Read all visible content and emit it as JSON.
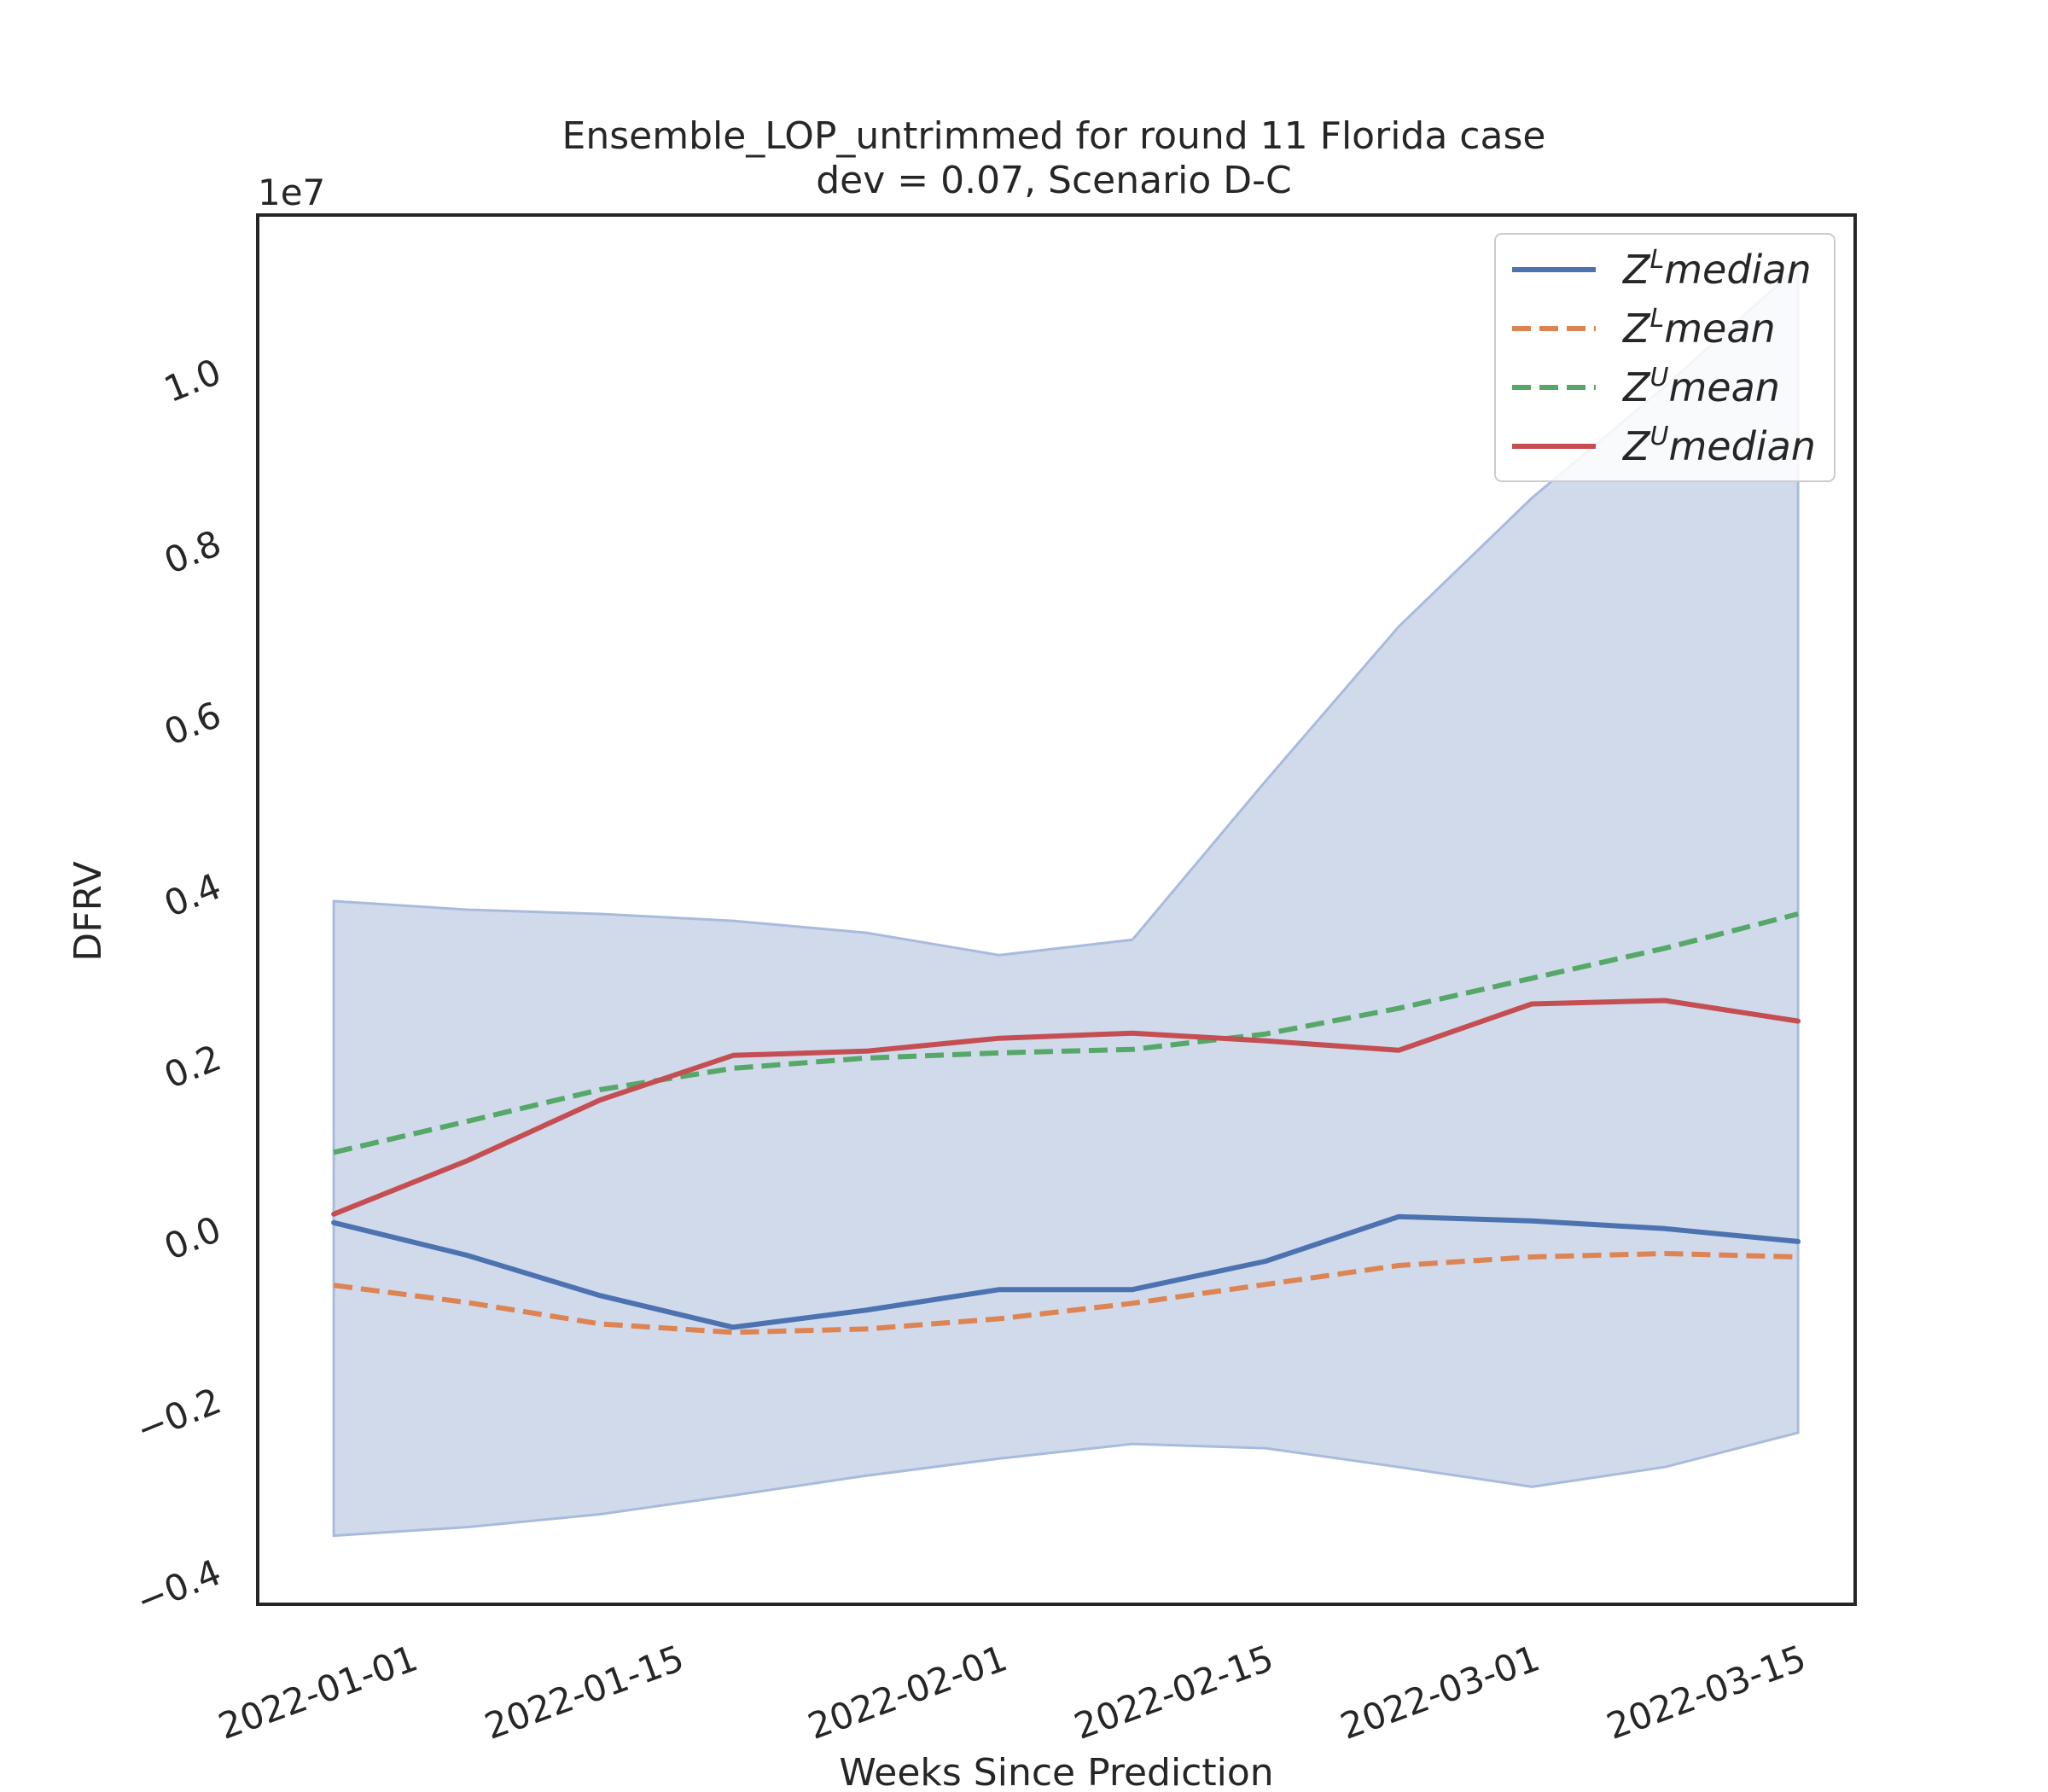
{
  "chart_data": {
    "type": "line",
    "title": "Ensemble_LOP_untrimmed for round 11 Florida case",
    "subtitle": "dev = 0.07, Scenario D-C",
    "xlabel": "Weeks Since Prediction",
    "ylabel": "DFRV",
    "y_scale_label": "1e7",
    "x_ticks": [
      "2022-01-01",
      "2022-01-15",
      "2022-02-01",
      "2022-02-15",
      "2022-03-01",
      "2022-03-15"
    ],
    "y_ticks": [
      "−0.4",
      "−0.2",
      "0.0",
      "0.2",
      "0.4",
      "0.6",
      "0.8",
      "1.0"
    ],
    "y_tick_values": [
      -0.4,
      -0.2,
      0.0,
      0.2,
      0.4,
      0.6,
      0.8,
      1.0
    ],
    "xlim": [
      "2021-12-24",
      "2022-03-18"
    ],
    "ylim": [
      -0.44,
      1.18
    ],
    "grid": false,
    "legend_position": "top-right",
    "x": [
      "2021-12-28",
      "2022-01-04",
      "2022-01-11",
      "2022-01-18",
      "2022-01-25",
      "2022-02-01",
      "2022-02-08",
      "2022-02-15",
      "2022-02-22",
      "2022-03-01",
      "2022-03-08",
      "2022-03-15"
    ],
    "band": {
      "color": "#c8d3e7",
      "upper": [
        0.38,
        0.37,
        0.365,
        0.357,
        0.343,
        0.317,
        0.335,
        0.52,
        0.7,
        0.85,
        0.98,
        1.12
      ],
      "lower": [
        -0.36,
        -0.35,
        -0.335,
        -0.313,
        -0.29,
        -0.27,
        -0.253,
        -0.258,
        -0.28,
        -0.303,
        -0.28,
        -0.24
      ]
    },
    "series": [
      {
        "name": "median",
        "prefix": "Z",
        "sup": "L",
        "color": "#4c72b0",
        "dash": "solid",
        "values": [
          0.005,
          -0.033,
          -0.08,
          -0.117,
          -0.097,
          -0.073,
          -0.073,
          -0.04,
          0.012,
          0.007,
          -0.002,
          -0.017
        ]
      },
      {
        "name": "mean",
        "prefix": "Z",
        "sup": "L",
        "color": "#dd8452",
        "dash": "dashed",
        "values": [
          -0.068,
          -0.088,
          -0.113,
          -0.123,
          -0.119,
          -0.107,
          -0.089,
          -0.067,
          -0.045,
          -0.035,
          -0.031,
          -0.035
        ]
      },
      {
        "name": "mean",
        "prefix": "Z",
        "sup": "U",
        "color": "#55a868",
        "dash": "dashed",
        "values": [
          0.087,
          0.123,
          0.16,
          0.185,
          0.197,
          0.203,
          0.207,
          0.225,
          0.255,
          0.29,
          0.325,
          0.365
        ]
      },
      {
        "name": "median",
        "prefix": "Z",
        "sup": "U",
        "color": "#c44e52",
        "dash": "solid",
        "values": [
          0.015,
          0.077,
          0.148,
          0.2,
          0.205,
          0.22,
          0.226,
          0.217,
          0.206,
          0.26,
          0.264,
          0.24
        ]
      }
    ]
  }
}
